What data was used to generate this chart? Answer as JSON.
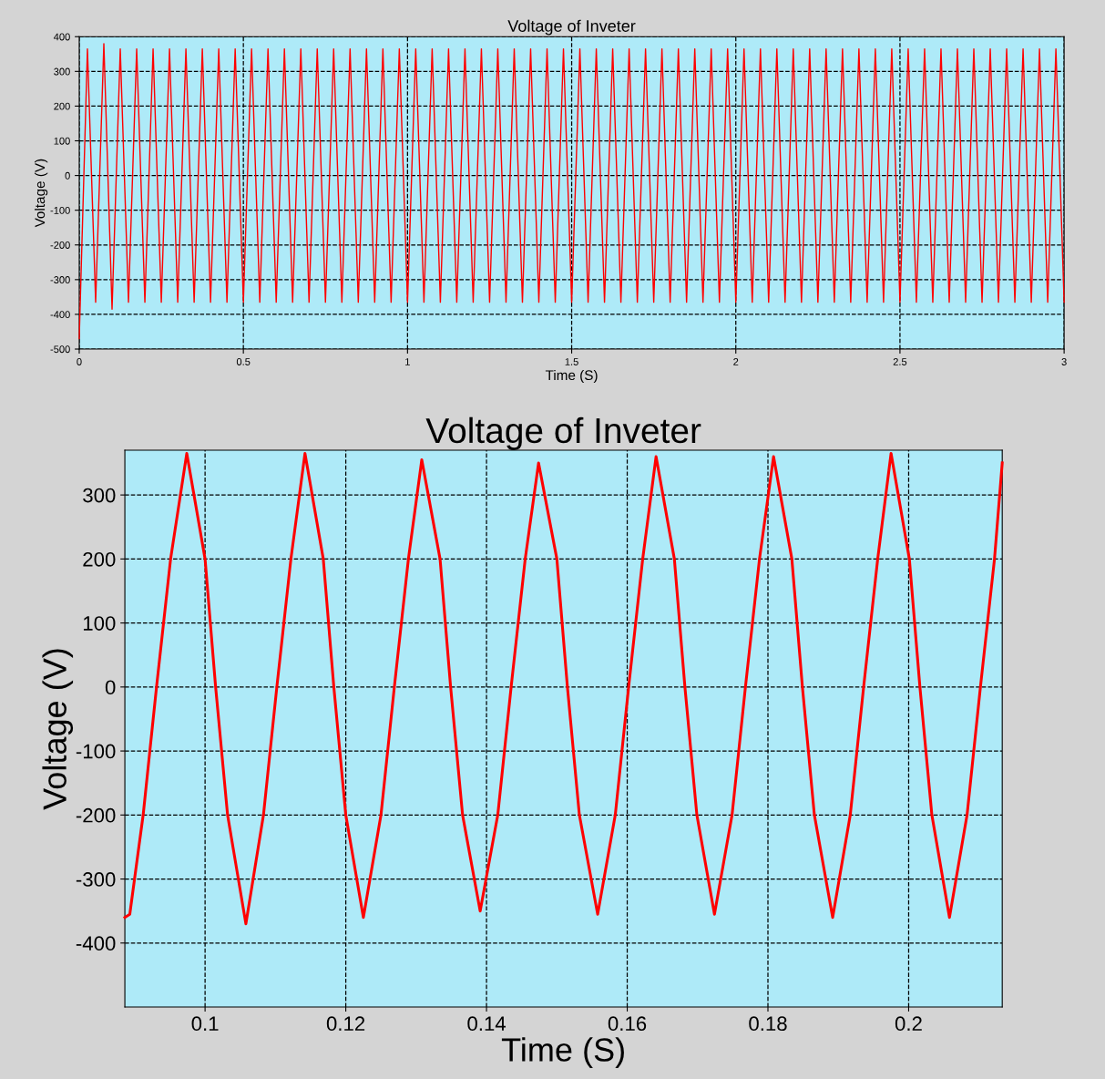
{
  "chart_data": [
    {
      "type": "line",
      "title": "Voltage of Inveter",
      "xlabel": "Time (S)",
      "ylabel": "Voltage (V)",
      "xlim": [
        0,
        3
      ],
      "ylim": [
        -500,
        400
      ],
      "xticks": [
        0,
        0.5,
        1,
        1.5,
        2,
        2.5,
        3
      ],
      "yticks": [
        -500,
        -400,
        -300,
        -200,
        -100,
        0,
        100,
        200,
        300,
        400
      ],
      "grid": true,
      "line_style": "solid",
      "marker": "none",
      "series": [
        {
          "color": "#ff0000",
          "x": [
            0,
            0.025,
            0.05,
            0.075,
            0.1,
            0.125,
            0.15,
            0.175,
            0.2,
            0.225,
            0.25,
            0.275,
            0.3,
            0.325,
            0.35,
            0.375,
            0.4,
            0.425,
            0.45,
            0.475,
            0.5,
            0.525,
            0.55,
            0.575,
            0.6,
            0.625,
            0.65,
            0.675,
            0.7,
            0.725,
            0.75,
            0.775,
            0.8,
            0.825,
            0.85,
            0.875,
            0.9,
            0.925,
            0.95,
            0.975,
            1,
            1.025,
            1.05,
            1.075,
            1.1,
            1.125,
            1.15,
            1.175,
            1.2,
            1.225,
            1.25,
            1.275,
            1.3,
            1.325,
            1.35,
            1.375,
            1.4,
            1.425,
            1.45,
            1.475,
            1.5,
            1.525,
            1.55,
            1.575,
            1.6,
            1.625,
            1.65,
            1.675,
            1.7,
            1.725,
            1.75,
            1.775,
            1.8,
            1.825,
            1.85,
            1.875,
            1.9,
            1.925,
            1.95,
            1.975,
            2,
            2.025,
            2.05,
            2.075,
            2.1,
            2.125,
            2.15,
            2.175,
            2.2,
            2.225,
            2.25,
            2.275,
            2.3,
            2.325,
            2.35,
            2.375,
            2.4,
            2.425,
            2.45,
            2.475,
            2.5,
            2.525,
            2.55,
            2.575,
            2.6,
            2.625,
            2.65,
            2.675,
            2.7,
            2.725,
            2.75,
            2.775,
            2.8,
            2.825,
            2.85,
            2.875,
            2.9,
            2.925,
            2.95,
            2.975,
            3
          ],
          "values": [
            -470,
            365,
            -365,
            380,
            -385,
            365,
            -365,
            365,
            -365,
            365,
            -365,
            365,
            -365,
            365,
            -365,
            365,
            -365,
            365,
            -365,
            365,
            -365,
            365,
            -365,
            365,
            -365,
            365,
            -365,
            365,
            -365,
            365,
            -365,
            365,
            -365,
            365,
            -365,
            365,
            -365,
            365,
            -365,
            365,
            -365,
            365,
            -365,
            365,
            -365,
            365,
            -365,
            365,
            -365,
            365,
            -365,
            365,
            -365,
            365,
            -365,
            365,
            -365,
            365,
            -365,
            365,
            -365,
            365,
            -365,
            365,
            -365,
            365,
            -365,
            365,
            -365,
            365,
            -365,
            365,
            -365,
            365,
            -365,
            365,
            -365,
            365,
            -365,
            365,
            -365,
            365,
            -365,
            365,
            -365,
            365,
            -365,
            365,
            -365,
            365,
            -365,
            365,
            -365,
            365,
            -365,
            365,
            -365,
            365,
            -365,
            365,
            -365,
            365,
            -365,
            365,
            -365,
            365,
            -365,
            365,
            -365,
            365,
            -365,
            365,
            -365,
            365,
            -365,
            365,
            -365,
            365,
            -365,
            365,
            -365
          ]
        }
      ]
    },
    {
      "type": "line",
      "title": "Voltage of Inveter",
      "xlabel": "Time (S)",
      "ylabel": "Voltage (V)",
      "xlim": [
        0.0886,
        0.2133
      ],
      "ylim": [
        -500,
        370
      ],
      "xticks": [
        0.1,
        0.12,
        0.14,
        0.16,
        0.18,
        0.2
      ],
      "yticks": [
        -400,
        -300,
        -200,
        -100,
        0,
        100,
        200,
        300
      ],
      "grid": true,
      "line_style": "solid",
      "marker": "none",
      "series": [
        {
          "color": "#ff0000",
          "x": [
            0.0886,
            0.0893,
            0.0912,
            0.0931,
            0.0951,
            0.0974,
            0.1,
            0.1015,
            0.1032,
            0.1058,
            0.1083,
            0.1102,
            0.1122,
            0.1142,
            0.1168,
            0.1183,
            0.12,
            0.1225,
            0.125,
            0.1269,
            0.1289,
            0.1308,
            0.1334,
            0.1349,
            0.1366,
            0.1391,
            0.1416,
            0.1435,
            0.1455,
            0.1474,
            0.15,
            0.1515,
            0.1532,
            0.1558,
            0.1583,
            0.1602,
            0.1622,
            0.1641,
            0.1667,
            0.1682,
            0.1699,
            0.1724,
            0.1749,
            0.1768,
            0.1788,
            0.1808,
            0.1834,
            0.1849,
            0.1866,
            0.1892,
            0.1917,
            0.1936,
            0.1956,
            0.1975,
            0.2001,
            0.2016,
            0.2033,
            0.2058,
            0.2083,
            0.2102,
            0.2122,
            0.2133
          ],
          "values": [
            -360,
            -355,
            -200,
            0,
            200,
            365,
            200,
            0,
            -200,
            -370,
            -200,
            0,
            200,
            365,
            200,
            0,
            -200,
            -360,
            -200,
            0,
            200,
            355,
            200,
            0,
            -200,
            -350,
            -200,
            0,
            200,
            350,
            200,
            0,
            -200,
            -355,
            -200,
            0,
            200,
            360,
            200,
            0,
            -200,
            -355,
            -200,
            0,
            200,
            360,
            200,
            0,
            -200,
            -360,
            -200,
            0,
            200,
            365,
            200,
            0,
            -200,
            -360,
            -200,
            0,
            200,
            350
          ]
        }
      ]
    }
  ]
}
